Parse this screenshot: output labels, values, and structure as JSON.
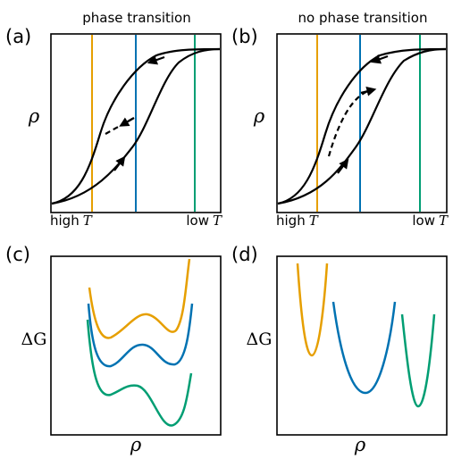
{
  "panels": {
    "a": {
      "tag": "(a)",
      "title": "phase transition",
      "ylabel": "ρ",
      "x_left": "high",
      "x_right": "low",
      "x_var": "T"
    },
    "b": {
      "tag": "(b)",
      "title": "no phase transition",
      "ylabel": "ρ",
      "x_left": "high",
      "x_right": "low",
      "x_var": "T"
    },
    "c": {
      "tag": "(c)",
      "ylabel": "ΔG",
      "xlabel": "ρ"
    },
    "d": {
      "tag": "(d)",
      "ylabel": "ΔG",
      "xlabel": "ρ"
    }
  },
  "colors": {
    "orange": "#e69f00",
    "blue": "#0072b2",
    "green": "#009e73",
    "black": "#000000"
  },
  "icons": {
    "arrowhead": "triangle-arrowhead"
  }
}
